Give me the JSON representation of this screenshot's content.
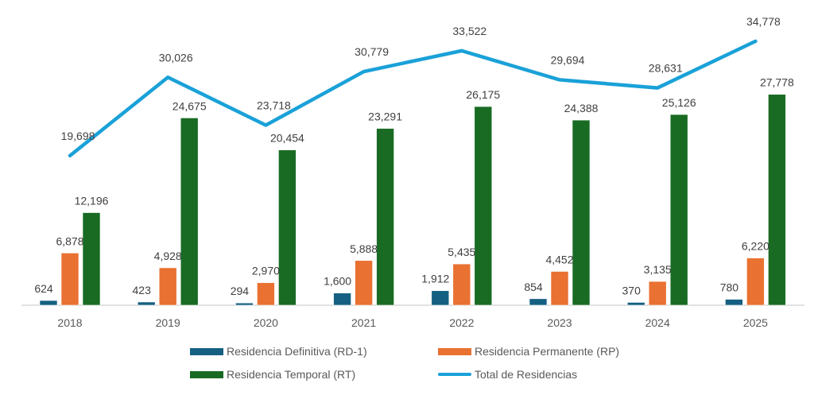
{
  "chart_data": {
    "type": "bar",
    "title": "",
    "xlabel": "",
    "ylabel": "",
    "ylim": [
      0,
      40000
    ],
    "grid": false,
    "legend_position": "bottom",
    "categories": [
      "2018",
      "2019",
      "2020",
      "2021",
      "2022",
      "2023",
      "2024",
      "2025"
    ],
    "series": [
      {
        "name": "Residencia Definitiva (RD-1)",
        "kind": "bar",
        "color": "#156082",
        "values": [
          624,
          423,
          294,
          1600,
          1912,
          854,
          370,
          780
        ],
        "labels": [
          "624",
          "423",
          "294",
          "1,600",
          "1,912",
          "854",
          "370",
          "780"
        ]
      },
      {
        "name": "Residencia Permanente (RP)",
        "kind": "bar",
        "color": "#E97132",
        "values": [
          6878,
          4928,
          2970,
          5888,
          5435,
          4452,
          3135,
          6220
        ],
        "labels": [
          "6,878",
          "4,928",
          "2,970",
          "5,888",
          "5,435",
          "4,452",
          "3,135",
          "6,220"
        ]
      },
      {
        "name": "Residencia Temporal (RT)",
        "kind": "bar",
        "color": "#196B24",
        "values": [
          12196,
          24675,
          20454,
          23291,
          26175,
          24388,
          25126,
          27778
        ],
        "labels": [
          "12,196",
          "24,675",
          "20,454",
          "23,291",
          "26,175",
          "24,388",
          "25,126",
          "27,778"
        ]
      },
      {
        "name": "Total de Residencias",
        "kind": "line",
        "color": "#1AA1D8",
        "values": [
          19698,
          30026,
          23718,
          30779,
          33522,
          29694,
          28631,
          34778
        ],
        "labels": [
          "19,698",
          "30,026",
          "23,718",
          "30,779",
          "33,522",
          "29,694",
          "28,631",
          "34,778"
        ]
      }
    ]
  }
}
